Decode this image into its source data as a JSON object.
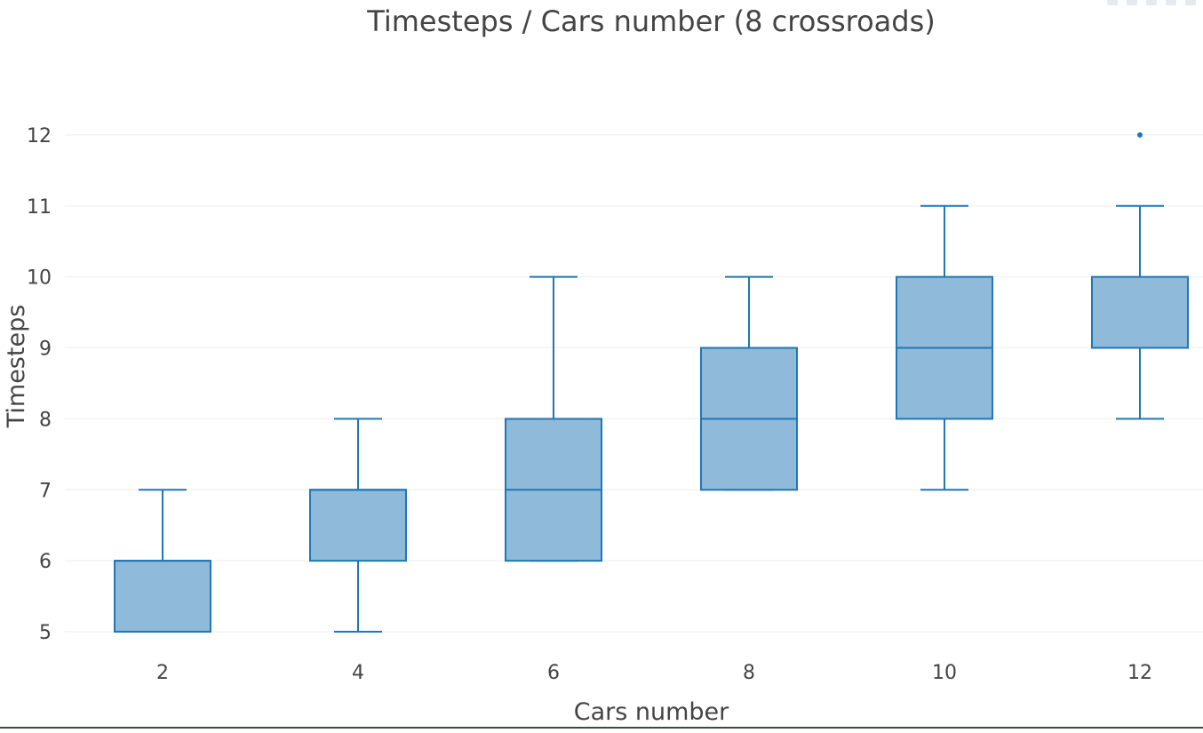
{
  "chart_data": {
    "type": "box",
    "title": "Timesteps / Cars number (8 crossroads)",
    "xlabel": "Cars number",
    "ylabel": "Timesteps",
    "categories": [
      2,
      4,
      6,
      8,
      10,
      12
    ],
    "boxes": [
      {
        "x": 2,
        "min": 5,
        "q1": 5,
        "median": 6,
        "q3": 6,
        "max": 7,
        "outliers": []
      },
      {
        "x": 4,
        "min": 5,
        "q1": 6,
        "median": 7,
        "q3": 7,
        "max": 8,
        "outliers": []
      },
      {
        "x": 6,
        "min": 6,
        "q1": 6,
        "median": 7,
        "q3": 8,
        "max": 10,
        "outliers": []
      },
      {
        "x": 8,
        "min": 7,
        "q1": 7,
        "median": 8,
        "q3": 9,
        "max": 10,
        "outliers": []
      },
      {
        "x": 10,
        "min": 7,
        "q1": 8,
        "median": 9,
        "q3": 10,
        "max": 11,
        "outliers": []
      },
      {
        "x": 12,
        "min": 8,
        "q1": 9,
        "median": 9,
        "q3": 10,
        "max": 11,
        "outliers": [
          12
        ]
      }
    ],
    "yticks": [
      5,
      6,
      7,
      8,
      9,
      10,
      11,
      12
    ],
    "ylim": [
      4.7,
      12.9
    ],
    "grid": true,
    "legend": "none",
    "colors": {
      "box_fill": "#8fbad9",
      "box_line": "#1f77b4",
      "grid": "#eeeeee",
      "text": "#444444"
    }
  }
}
